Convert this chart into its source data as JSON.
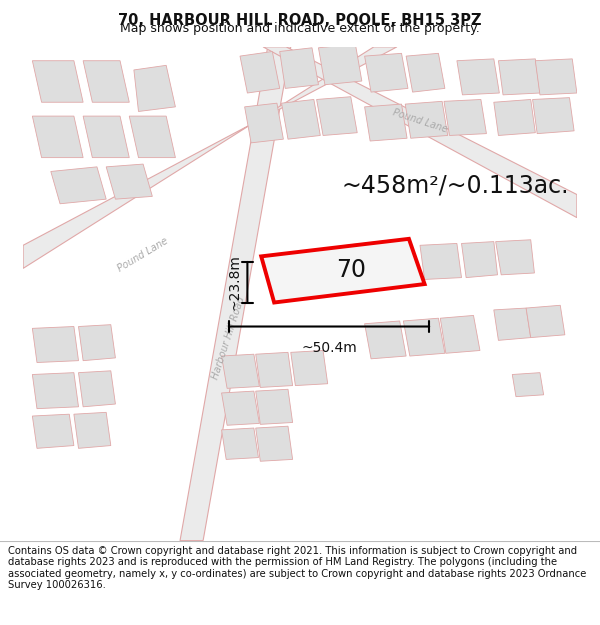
{
  "title": "70, HARBOUR HILL ROAD, POOLE, BH15 3PZ",
  "subtitle": "Map shows position and indicative extent of the property.",
  "area_label": "~458m²/~0.113ac.",
  "width_label": "~50.4m",
  "height_label": "~23.8m",
  "plot_number": "70",
  "footer": "Contains OS data © Crown copyright and database right 2021. This information is subject to Crown copyright and database rights 2023 and is reproduced with the permission of HM Land Registry. The polygons (including the associated geometry, namely x, y co-ordinates) are subject to Crown copyright and database rights 2023 Ordnance Survey 100026316.",
  "bg_color": "#f5f5f5",
  "map_bg": "#f8f8f8",
  "building_fill": "#e0e0e0",
  "building_edge": "#e8b0b0",
  "road_fill": "#eeeeee",
  "road_edge": "#e8b0b0",
  "plot_stroke": "#ee0000",
  "plot_fill": "#f5f5f5",
  "dim_color": "#111111",
  "title_color": "#111111",
  "footer_color": "#111111",
  "title_fontsize": 10.5,
  "subtitle_fontsize": 9,
  "area_fontsize": 17,
  "dim_fontsize": 10,
  "plot_label_fontsize": 17,
  "footer_fontsize": 7.2,
  "road_label_color": "#aaaaaa",
  "road_label_size": 7
}
